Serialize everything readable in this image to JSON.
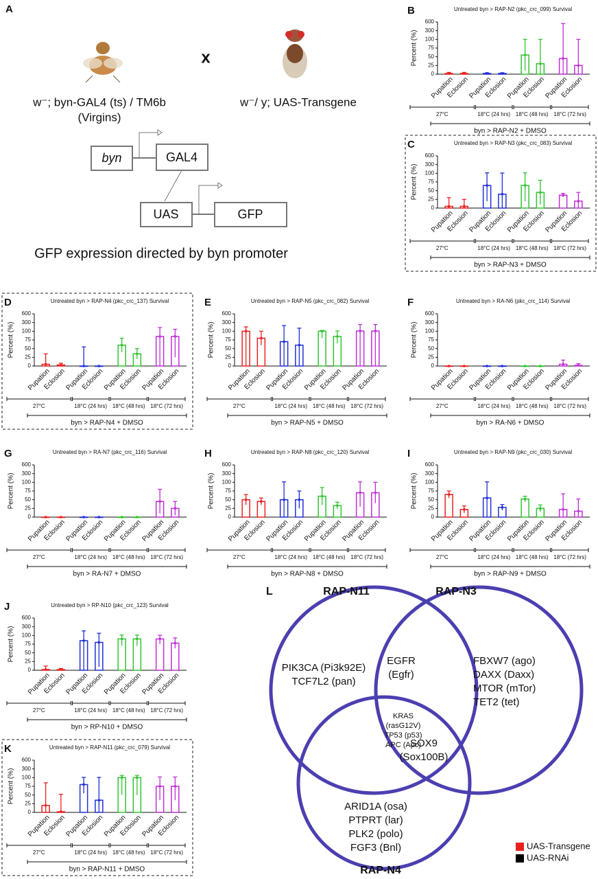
{
  "panel_a": {
    "label": "A",
    "cross": "x",
    "parent1": "w⁻; byn-GAL4 (ts) / TM6b",
    "parent1_note": "(Virgins)",
    "parent2": "w⁻/ y; UAS-Transgene",
    "construct": {
      "promoter": "byn",
      "driver": "GAL4",
      "uas": "UAS",
      "reporter": "GFP"
    },
    "caption": "GFP expression directed by byn promoter"
  },
  "chart_data": [
    {
      "type": "bar",
      "panel": "B",
      "title": "Untreated byn > RAP-N2 (pkc_crc_099) Survival",
      "y_label": "Percent (%)",
      "highlighted": false,
      "categories": [
        "Pupation",
        "Eclosion",
        "Pupation",
        "Eclosion",
        "Pupation",
        "Eclosion",
        "Pupation",
        "Eclosion"
      ],
      "values": [
        2,
        2,
        2,
        2,
        55,
        30,
        45,
        25
      ],
      "errors": [
        3,
        3,
        2,
        2,
        45,
        70,
        500,
        75
      ],
      "colors": [
        "#e8211f",
        "#e8211f",
        "#1f2fd6",
        "#1f2fd6",
        "#2fc42f",
        "#2fc42f",
        "#bf2fd6",
        "#bf2fd6"
      ],
      "groups": [
        "27°C",
        "18°C (24 hrs)",
        "18°C (48 hrs)",
        "18°C (72 hrs)"
      ],
      "footer": "byn > RAP-N2 + DMSO",
      "ylim": [
        0,
        600
      ],
      "yticks": [
        0,
        25,
        50,
        75,
        100,
        300,
        600
      ]
    },
    {
      "type": "bar",
      "panel": "C",
      "title": "Untreated byn > RAP-N3 (pkc_crc_083) Survival",
      "y_label": "Percent (%)",
      "highlighted": true,
      "categories": [
        "Pupation",
        "Eclosion",
        "Pupation",
        "Eclosion",
        "Pupation",
        "Eclosion",
        "Pupation",
        "Eclosion"
      ],
      "values": [
        5,
        5,
        65,
        40,
        65,
        45,
        37,
        20
      ],
      "errors": [
        25,
        20,
        45,
        65,
        45,
        35,
        5,
        25
      ],
      "colors": [
        "#e8211f",
        "#e8211f",
        "#1f2fd6",
        "#1f2fd6",
        "#2fc42f",
        "#2fc42f",
        "#bf2fd6",
        "#bf2fd6"
      ],
      "groups": [
        "27°C",
        "18°C (24 hrs)",
        "18°C (48 hrs)",
        "18°C (72 hrs)"
      ],
      "footer": "byn > RAP-N3 + DMSO",
      "ylim": [
        0,
        600
      ],
      "yticks": [
        0,
        25,
        50,
        75,
        100,
        300,
        600
      ]
    },
    {
      "type": "bar",
      "panel": "D",
      "title": "Untreated byn > RAP-N4 (pkc_crc_137) Survival",
      "y_label": "Percent (%)",
      "highlighted": true,
      "categories": [
        "Pupation",
        "Eclosion",
        "Pupation",
        "Eclosion",
        "Pupation",
        "Eclosion",
        "Pupation",
        "Eclosion"
      ],
      "values": [
        5,
        3,
        0,
        0,
        60,
        35,
        85,
        85
      ],
      "errors": [
        30,
        5,
        55,
        0,
        20,
        15,
        100,
        60
      ],
      "colors": [
        "#e8211f",
        "#e8211f",
        "#1f2fd6",
        "#1f2fd6",
        "#2fc42f",
        "#2fc42f",
        "#bf2fd6",
        "#bf2fd6"
      ],
      "groups": [
        "27°C",
        "18°C (24 hrs)",
        "18°C (48 hrs)",
        "18°C (72 hrs)"
      ],
      "footer": "byn > RAP-N4 + DMSO",
      "ylim": [
        0,
        600
      ],
      "yticks": [
        0,
        25,
        50,
        75,
        100,
        300,
        600
      ]
    },
    {
      "type": "bar",
      "panel": "E",
      "title": "Untreated byn > RAP-N5 (pkc_crc_082) Survival",
      "y_label": "Percent (%)",
      "highlighted": false,
      "categories": [
        "Pupation",
        "Eclosion",
        "Pupation",
        "Eclosion",
        "Pupation",
        "Eclosion",
        "Pupation",
        "Eclosion"
      ],
      "values": [
        100,
        80,
        70,
        60,
        100,
        85,
        105,
        105
      ],
      "errors": [
        100,
        20,
        160,
        110,
        20,
        20,
        150,
        150
      ],
      "colors": [
        "#e8211f",
        "#e8211f",
        "#1f2fd6",
        "#1f2fd6",
        "#2fc42f",
        "#2fc42f",
        "#bf2fd6",
        "#bf2fd6"
      ],
      "groups": [
        "27°C",
        "18°C (24 hrs)",
        "18°C (48 hrs)",
        "18°C (72 hrs)"
      ],
      "footer": "byn > RAP-N5 + DMSO",
      "ylim": [
        0,
        600
      ],
      "yticks": [
        0,
        25,
        50,
        75,
        100,
        300,
        600
      ]
    },
    {
      "type": "bar",
      "panel": "F",
      "title": "Untreated byn > RA-N6 (pkc_crc_114) Survival",
      "y_label": "Percent (%)",
      "highlighted": false,
      "categories": [
        "Pupation",
        "Eclosion",
        "Pupation",
        "Eclosion",
        "Pupation",
        "Eclosion",
        "Pupation",
        "Eclosion"
      ],
      "values": [
        0,
        0,
        0,
        0,
        0,
        0,
        5,
        2
      ],
      "errors": [
        0,
        0,
        0,
        0,
        0,
        0,
        12,
        5
      ],
      "colors": [
        "#e8211f",
        "#e8211f",
        "#1f2fd6",
        "#1f2fd6",
        "#2fc42f",
        "#2fc42f",
        "#bf2fd6",
        "#bf2fd6"
      ],
      "groups": [
        "27°C",
        "18°C (24 hrs)",
        "18°C (48 hrs)",
        "18°C (72 hrs)"
      ],
      "footer": "byn > RA-N6 + DMSO",
      "ylim": [
        0,
        600
      ],
      "yticks": [
        0,
        25,
        50,
        75,
        100,
        300,
        600
      ]
    },
    {
      "type": "bar",
      "panel": "G",
      "title": "Untreated byn > RA-N7 (pkc_crc_116) Survival",
      "y_label": "Percent (%)",
      "highlighted": false,
      "categories": [
        "Pupation",
        "Eclosion",
        "Pupation",
        "Eclosion",
        "Pupation",
        "Eclosion",
        "Pupation",
        "Eclosion"
      ],
      "values": [
        0,
        0,
        0,
        0,
        0,
        0,
        45,
        25
      ],
      "errors": [
        0,
        0,
        0,
        0,
        0,
        0,
        35,
        20
      ],
      "colors": [
        "#e8211f",
        "#e8211f",
        "#1f2fd6",
        "#1f2fd6",
        "#2fc42f",
        "#2fc42f",
        "#bf2fd6",
        "#bf2fd6"
      ],
      "groups": [
        "27°C",
        "18°C (24 hrs)",
        "18°C (48 hrs)",
        "18°C (72 hrs)"
      ],
      "footer": "byn > RA-N7 + DMSO",
      "ylim": [
        0,
        600
      ],
      "yticks": [
        0,
        25,
        50,
        75,
        100,
        300,
        600
      ]
    },
    {
      "type": "bar",
      "panel": "H",
      "title": "Untreated byn > RAP-N8 (pkc_crc_120) Survival",
      "y_label": "Percent (%)",
      "highlighted": false,
      "categories": [
        "Pupation",
        "Eclosion",
        "Pupation",
        "Eclosion",
        "Pupation",
        "Eclosion",
        "Pupation",
        "Eclosion"
      ],
      "values": [
        50,
        45,
        50,
        50,
        60,
        33,
        70,
        70
      ],
      "errors": [
        15,
        10,
        60,
        25,
        25,
        10,
        40,
        30
      ],
      "colors": [
        "#e8211f",
        "#e8211f",
        "#1f2fd6",
        "#1f2fd6",
        "#2fc42f",
        "#2fc42f",
        "#bf2fd6",
        "#bf2fd6"
      ],
      "groups": [
        "27°C",
        "18°C (24 hrs)",
        "18°C (48 hrs)",
        "18°C (72 hrs)"
      ],
      "footer": "byn > RAP-N8 + DMSO",
      "ylim": [
        0,
        600
      ],
      "yticks": [
        0,
        25,
        50,
        75,
        100,
        300,
        600
      ]
    },
    {
      "type": "bar",
      "panel": "I",
      "title": "Untreated byn > RAP-N9 (pkc_crc_030) Survival",
      "y_label": "Percent (%)",
      "highlighted": false,
      "categories": [
        "Pupation",
        "Eclosion",
        "Pupation",
        "Eclosion",
        "Pupation",
        "Eclosion",
        "Pupation",
        "Eclosion"
      ],
      "values": [
        65,
        22,
        55,
        28,
        52,
        25,
        22,
        17
      ],
      "errors": [
        10,
        10,
        55,
        8,
        8,
        10,
        45,
        35
      ],
      "colors": [
        "#e8211f",
        "#e8211f",
        "#1f2fd6",
        "#1f2fd6",
        "#2fc42f",
        "#2fc42f",
        "#bf2fd6",
        "#bf2fd6"
      ],
      "groups": [
        "27°C",
        "18°C (24 hrs)",
        "18°C (48 hrs)",
        "18°C (72 hrs)"
      ],
      "footer": "byn > RAP-N9 + DMSO",
      "ylim": [
        0,
        600
      ],
      "yticks": [
        0,
        25,
        50,
        75,
        100,
        300,
        600
      ]
    },
    {
      "type": "bar",
      "panel": "J",
      "title": "Untreated byn > RP-N10 (pkc_crc_123) Survival",
      "y_label": "Percent (%)",
      "highlighted": false,
      "categories": [
        "Pupation",
        "Eclosion",
        "Pupation",
        "Eclosion",
        "Pupation",
        "Eclosion",
        "Pupation",
        "Eclosion"
      ],
      "values": [
        2,
        2,
        85,
        80,
        90,
        90,
        90,
        78
      ],
      "errors": [
        10,
        3,
        120,
        70,
        20,
        20,
        15,
        15
      ],
      "colors": [
        "#e8211f",
        "#e8211f",
        "#1f2fd6",
        "#1f2fd6",
        "#2fc42f",
        "#2fc42f",
        "#bf2fd6",
        "#bf2fd6"
      ],
      "groups": [
        "27°C",
        "18°C (24 hrs)",
        "18°C (48 hrs)",
        "18°C (72 hrs)"
      ],
      "footer": "byn > RP-N10 + DMSO",
      "ylim": [
        0,
        600
      ],
      "yticks": [
        0,
        25,
        50,
        75,
        100,
        300,
        600
      ]
    },
    {
      "type": "bar",
      "panel": "K",
      "title": "Untreated byn > RAP-N11 (pkc_crc_079) Survival",
      "y_label": "Percent (%)",
      "highlighted": true,
      "categories": [
        "Pupation",
        "Eclosion",
        "Pupation",
        "Eclosion",
        "Pupation",
        "Eclosion",
        "Pupation",
        "Eclosion"
      ],
      "values": [
        20,
        2,
        80,
        35,
        100,
        100,
        75,
        75
      ],
      "errors": [
        65,
        50,
        25,
        70,
        50,
        50,
        40,
        40
      ],
      "colors": [
        "#e8211f",
        "#e8211f",
        "#1f2fd6",
        "#1f2fd6",
        "#2fc42f",
        "#2fc42f",
        "#bf2fd6",
        "#bf2fd6"
      ],
      "groups": [
        "27°C",
        "18°C (24 hrs)",
        "18°C (48 hrs)",
        "18°C (72 hrs)"
      ],
      "footer": "byn > RAP-N11 + DMSO",
      "ylim": [
        0,
        600
      ],
      "yticks": [
        0,
        25,
        50,
        75,
        100,
        300,
        600
      ]
    }
  ],
  "venn": {
    "label": "L",
    "sets": [
      "RAP-N11",
      "RAP-N3",
      "RAP-N4"
    ],
    "circle_color": "#4b3fb0",
    "regions": [
      [
        {
          "text": "PIK3CA (Pi3k92E)",
          "color": "#e8211f"
        },
        {
          "text": "TCF7L2 (pan)",
          "color": "#111111"
        }
      ],
      [
        {
          "text": "EGFR",
          "color": "#e8211f"
        },
        {
          "text": "(Egfr)",
          "color": "#e8211f"
        }
      ],
      [
        {
          "text": "FBXW7 (ago)",
          "color": "#111111"
        },
        {
          "text": "DAXX (Daxx)",
          "color": "#111111"
        },
        {
          "text": "MTOR (mTor)",
          "color": "#111111"
        },
        {
          "text": "TET2 (tet)",
          "color": "#111111"
        }
      ],
      [
        {
          "text": "KRAS",
          "color": "#e8211f"
        },
        {
          "text": "(rasG12V)",
          "color": "#e8211f"
        },
        {
          "text": "TP53 (p53)",
          "color": "#333333"
        },
        {
          "text": "APC (Apc)",
          "color": "#333333"
        }
      ],
      [
        {
          "text": "SOX9",
          "color": "#111111"
        },
        {
          "text": "(Sox100B)",
          "color": "#111111"
        }
      ],
      [
        {
          "text": "ARID1A (osa)",
          "color": "#111111"
        },
        {
          "text": "PTPRT (lar)",
          "color": "#111111"
        },
        {
          "text": "PLK2 (polo)",
          "color": "#111111"
        },
        {
          "text": "FGF3 (Bnl)",
          "color": "#111111"
        }
      ]
    ],
    "legend": [
      {
        "text": "UAS-Transgene",
        "color": "#e8211f"
      },
      {
        "text": "UAS-RNAi",
        "color": "#000000"
      }
    ]
  }
}
